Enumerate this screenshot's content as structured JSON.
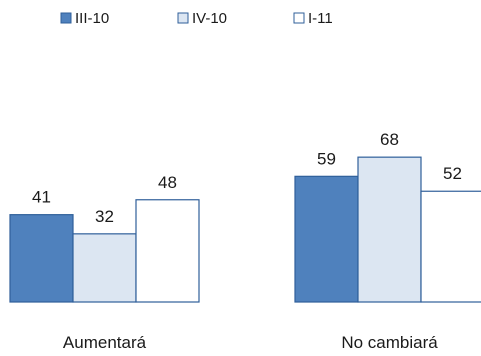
{
  "chart_data": {
    "type": "bar",
    "categories": [
      "Aumentará",
      "No cambiará"
    ],
    "series": [
      {
        "name": "III-10",
        "values": [
          41,
          59
        ],
        "color": "#4f81bd"
      },
      {
        "name": "IV-10",
        "values": [
          32,
          68
        ],
        "color": "#dce6f2"
      },
      {
        "name": "I-11",
        "values": [
          48,
          52
        ],
        "color": "#ffffff"
      }
    ],
    "stroke_color": "#2f5f9a",
    "legend_position": "top",
    "grid": false,
    "ylim": [
      0,
      80
    ]
  }
}
